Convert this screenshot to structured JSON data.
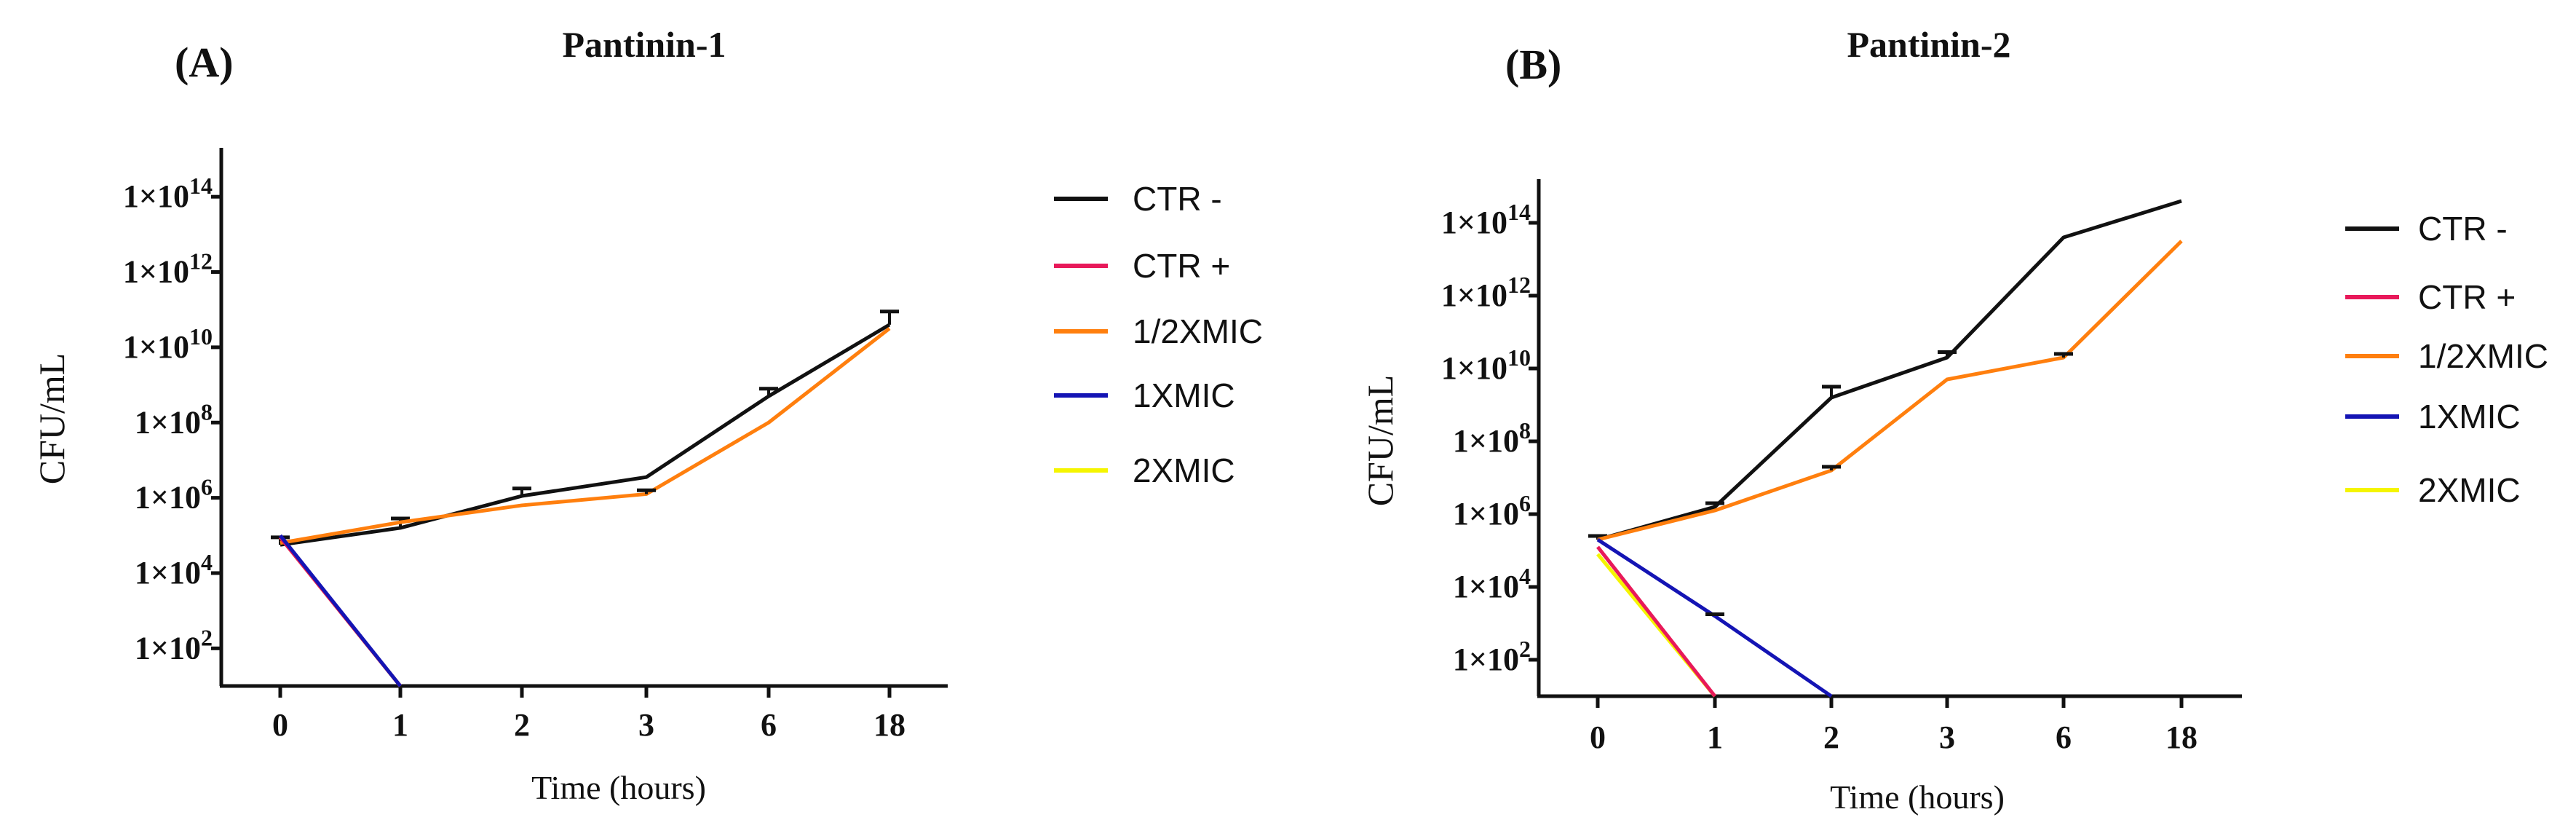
{
  "colors": {
    "CTR -": "#111111",
    "CTR +": "#e8195a",
    "1/2XMIC": "#ff7f0e",
    "1XMIC": "#1414b4",
    "2XMIC": "#f5f500"
  },
  "chart_data": [
    {
      "type": "line",
      "panel_label": "(A)",
      "title": "Pantinin-1",
      "xlabel": "Time (hours)",
      "ylabel": "CFU/mL",
      "y_scale": "log10",
      "ylim_log10": [
        1,
        15.3
      ],
      "y_ticks": [
        {
          "exp": 2,
          "mant": "1×10",
          "sup": "2"
        },
        {
          "exp": 4,
          "mant": "1×10",
          "sup": "4"
        },
        {
          "exp": 6,
          "mant": "1×10",
          "sup": "6"
        },
        {
          "exp": 8,
          "mant": "1×10",
          "sup": "8"
        },
        {
          "exp": 10,
          "mant": "1×10",
          "sup": "10"
        },
        {
          "exp": 12,
          "mant": "1×10",
          "sup": "12"
        },
        {
          "exp": 14,
          "mant": "1×10",
          "sup": "14"
        }
      ],
      "categories": [
        "0",
        "1",
        "2",
        "3",
        "6",
        "18"
      ],
      "legend": [
        "CTR -",
        "CTR +",
        "1/2XMIC",
        "1XMIC",
        "2XMIC"
      ],
      "series": [
        {
          "name": "CTR -",
          "log10_values": [
            4.75,
            5.2,
            6.05,
            6.55,
            8.7,
            10.6
          ],
          "log10_err": [
            0.2,
            0.25,
            0.2,
            0,
            0.2,
            0.35
          ]
        },
        {
          "name": "1/2XMIC",
          "log10_values": [
            4.8,
            5.35,
            5.8,
            6.1,
            8.0,
            10.5
          ],
          "log10_err": [
            0,
            0,
            0,
            0.1,
            0,
            0
          ]
        },
        {
          "name": "2XMIC",
          "log10_values": [
            4.95,
            1.0,
            null,
            null,
            null,
            null
          ]
        },
        {
          "name": "CTR +",
          "log10_values": [
            4.95,
            1.0,
            null,
            null,
            null,
            null
          ]
        },
        {
          "name": "1XMIC",
          "log10_values": [
            5.0,
            1.0,
            null,
            null,
            null,
            null
          ]
        }
      ]
    },
    {
      "type": "line",
      "panel_label": "(B)",
      "title": "Pantinin-2",
      "xlabel": "Time (hours)",
      "ylabel": "CFU/mL",
      "y_scale": "log10",
      "ylim_log10": [
        1,
        15.2
      ],
      "y_ticks": [
        {
          "exp": 2,
          "mant": "1×10",
          "sup": "2"
        },
        {
          "exp": 4,
          "mant": "1×10",
          "sup": "4"
        },
        {
          "exp": 6,
          "mant": "1×10",
          "sup": "6"
        },
        {
          "exp": 8,
          "mant": "1×10",
          "sup": "8"
        },
        {
          "exp": 10,
          "mant": "1×10",
          "sup": "10"
        },
        {
          "exp": 12,
          "mant": "1×10",
          "sup": "12"
        },
        {
          "exp": 14,
          "mant": "1×10",
          "sup": "14"
        }
      ],
      "categories": [
        "0",
        "1",
        "2",
        "3",
        "6",
        "18"
      ],
      "legend": [
        "CTR -",
        "CTR +",
        "1/2XMIC",
        "1XMIC",
        "2XMIC"
      ],
      "series": [
        {
          "name": "CTR -",
          "log10_values": [
            5.3,
            6.2,
            9.2,
            10.3,
            13.6,
            14.6
          ],
          "log10_err": [
            0.1,
            0.1,
            0.3,
            0.15,
            0,
            0
          ]
        },
        {
          "name": "1/2XMIC",
          "log10_values": [
            5.3,
            6.1,
            7.2,
            9.7,
            10.3,
            13.5
          ],
          "log10_err": [
            0,
            0,
            0.1,
            0,
            0.1,
            0
          ]
        },
        {
          "name": "2XMIC",
          "log10_values": [
            4.9,
            1.0,
            null,
            null,
            null,
            null
          ]
        },
        {
          "name": "CTR +",
          "log10_values": [
            5.1,
            1.0,
            null,
            null,
            null,
            null
          ]
        },
        {
          "name": "1XMIC",
          "log10_values": [
            5.3,
            3.2,
            1.0,
            null,
            null,
            null
          ],
          "log10_err": [
            0,
            0.05,
            0,
            0,
            0,
            0
          ]
        }
      ]
    }
  ]
}
